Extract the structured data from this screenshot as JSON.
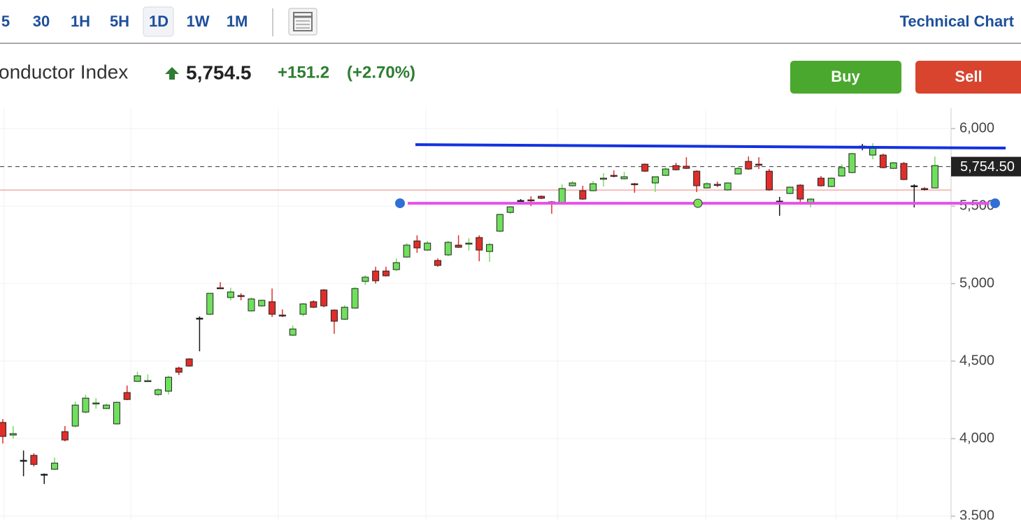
{
  "toolbar": {
    "intervals": [
      "5",
      "30",
      "1H",
      "5H",
      "1D",
      "1W",
      "1M"
    ],
    "link": "Technical Chart"
  },
  "header": {
    "name": "onductor Index",
    "price": "5,754.5",
    "change": "+151.2",
    "change_percent": "(+2.70%)"
  },
  "actions": {
    "buy": "Buy",
    "sell": "Sell"
  },
  "chart_data": {
    "type": "candlestick",
    "categories": [
      null,
      null,
      null,
      null,
      null,
      null,
      null,
      null,
      null,
      null,
      null,
      null,
      null,
      null,
      null,
      null,
      null,
      null,
      null,
      null,
      null,
      null,
      null,
      null,
      null,
      null,
      null,
      null,
      null,
      null,
      null,
      null,
      null,
      null,
      null,
      null,
      null,
      null,
      null,
      null,
      null,
      null,
      null,
      null,
      null,
      null,
      null,
      null,
      null,
      null,
      null,
      null,
      null,
      null,
      null,
      null,
      null,
      null,
      null,
      null,
      null,
      null,
      null,
      null,
      null,
      null,
      null,
      null,
      null,
      null,
      null,
      null,
      null,
      null,
      null,
      null,
      null,
      null,
      null,
      null,
      null,
      null,
      null,
      null,
      null,
      null,
      null,
      null,
      null,
      null,
      null
    ],
    "open": [
      4104,
      4023,
      3860,
      3892,
      3770,
      3802,
      4045,
      4081,
      4171,
      4225,
      4194,
      4095,
      4297,
      4369,
      4369,
      4284,
      4306,
      4455,
      4514,
      4777,
      4802,
      4973,
      4910,
      4923,
      4824,
      4856,
      4883,
      4797,
      4667,
      4802,
      4883,
      4959,
      4829,
      4770,
      4842,
      5014,
      5081,
      5081,
      5090,
      5171,
      5275,
      5216,
      5149,
      5185,
      5248,
      5257,
      5297,
      5207,
      5338,
      5459,
      5536,
      5540,
      5563,
      5527,
      5518,
      5631,
      5599,
      5599,
      5676,
      5698,
      5676,
      5644,
      5770,
      5649,
      5698,
      5761,
      5757,
      5725,
      5617,
      5640,
      5604,
      5707,
      5788,
      5770,
      5725,
      5532,
      5581,
      5635,
      5518,
      5680,
      5626,
      5694,
      5716,
      5887,
      5829,
      5829,
      5743,
      5775,
      5631,
      5613,
      5617
    ],
    "high": [
      4126,
      4081,
      3923,
      3905,
      3775,
      3878,
      4081,
      4239,
      4284,
      4261,
      4225,
      4239,
      4342,
      4432,
      4414,
      4324,
      4405,
      4464,
      4518,
      4788,
      4937,
      5009,
      4973,
      4937,
      4910,
      4896,
      4968,
      4833,
      4730,
      4874,
      4892,
      4964,
      4833,
      4860,
      4977,
      5054,
      5108,
      5108,
      5162,
      5261,
      5311,
      5275,
      5162,
      5275,
      5311,
      5293,
      5311,
      5261,
      5450,
      5500,
      5545,
      5563,
      5568,
      5532,
      5640,
      5662,
      5631,
      5662,
      5712,
      5730,
      5721,
      5649,
      5775,
      5689,
      5748,
      5779,
      5815,
      5730,
      5653,
      5658,
      5653,
      5752,
      5820,
      5815,
      5739,
      5559,
      5626,
      5640,
      5550,
      5694,
      5685,
      5770,
      5843,
      5901,
      5905,
      5838,
      5784,
      5784,
      5640,
      5622,
      5820
    ],
    "low": [
      3968,
      4000,
      3757,
      3820,
      3707,
      3797,
      3982,
      4072,
      4162,
      4193,
      4190,
      4090,
      4248,
      4365,
      4365,
      4275,
      4284,
      4410,
      4464,
      4563,
      4797,
      4964,
      4892,
      4892,
      4820,
      4851,
      4784,
      4784,
      4662,
      4788,
      4842,
      4847,
      4676,
      4766,
      4838,
      4991,
      5000,
      5045,
      5081,
      5167,
      5198,
      5212,
      5108,
      5176,
      5230,
      5212,
      5144,
      5140,
      5333,
      5450,
      5532,
      5500,
      5545,
      5450,
      5514,
      5626,
      5540,
      5595,
      5626,
      5685,
      5671,
      5586,
      5720,
      5590,
      5694,
      5730,
      5739,
      5590,
      5613,
      5622,
      5599,
      5703,
      5734,
      5739,
      5599,
      5437,
      5577,
      5527,
      5491,
      5626,
      5622,
      5689,
      5712,
      5860,
      5802,
      5743,
      5739,
      5667,
      5491,
      5599,
      5613
    ],
    "close": [
      4014,
      4032,
      3860,
      3833,
      3770,
      3842,
      3991,
      4216,
      4261,
      4230,
      4216,
      4234,
      4252,
      4405,
      4374,
      4315,
      4396,
      4428,
      4468,
      4777,
      4937,
      4968,
      4946,
      4919,
      4901,
      4892,
      4802,
      4793,
      4707,
      4869,
      4847,
      4856,
      4757,
      4847,
      4968,
      5041,
      5018,
      5050,
      5135,
      5248,
      5230,
      5261,
      5117,
      5266,
      5234,
      5261,
      5216,
      5252,
      5446,
      5495,
      5536,
      5536,
      5550,
      5522,
      5613,
      5649,
      5545,
      5644,
      5680,
      5694,
      5689,
      5640,
      5725,
      5689,
      5739,
      5734,
      5743,
      5631,
      5644,
      5635,
      5649,
      5743,
      5739,
      5766,
      5604,
      5532,
      5622,
      5545,
      5545,
      5631,
      5680,
      5748,
      5838,
      5887,
      5883,
      5748,
      5779,
      5671,
      5631,
      5608,
      5761
    ],
    "up_color": "#6fe05c",
    "down_color": "#e02e2a",
    "doji_color": "#1a1a1a",
    "ylim": [
      3478,
      6131
    ],
    "yticks": [
      {
        "value": 3500,
        "label": "3,500"
      },
      {
        "value": 4000,
        "label": "4,000"
      },
      {
        "value": 4500,
        "label": "4,500"
      },
      {
        "value": 5000,
        "label": "5,000"
      },
      {
        "value": 5500,
        "label": "5,500"
      },
      {
        "value": 6000,
        "label": "6,000"
      }
    ],
    "grid": true,
    "last_price": {
      "value": 5754.5,
      "label": "5,754.50"
    },
    "reference_line": {
      "value": 5603.3,
      "color": "#f08080"
    },
    "trendlines": [
      {
        "color": "#1431e0",
        "values": [
          5896,
          5874
        ]
      },
      {
        "color": "#e550e8",
        "values": [
          5518,
          5518
        ]
      }
    ]
  }
}
